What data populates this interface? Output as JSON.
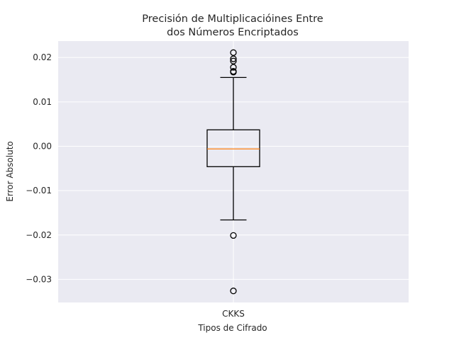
{
  "chart_data": {
    "type": "box",
    "title": [
      "Precisión de Multiplicacióines Entre",
      "dos Números Encriptados"
    ],
    "xlabel": "Tipos de Cifrado",
    "ylabel": "Error Absoluto",
    "categories": [
      "CKKS"
    ],
    "ylim": [
      -0.0352,
      0.0237
    ],
    "yticks": [
      -0.03,
      -0.02,
      -0.01,
      0.0,
      0.01,
      0.02
    ],
    "ytick_labels": [
      "−0.03",
      "−0.02",
      "−0.01",
      "0.00",
      "0.01",
      "0.02"
    ],
    "grid": true,
    "boxes": [
      {
        "name": "CKKS",
        "whisker_low": -0.0166,
        "q1": -0.0046,
        "median": -0.0006,
        "q3": 0.0037,
        "whisker_high": 0.0155,
        "outliers": [
          0.0211,
          0.0197,
          0.0192,
          0.0178,
          0.0169,
          0.0167,
          -0.0201,
          -0.0326
        ]
      }
    ],
    "colors": {
      "background": "#eaeaf2",
      "grid": "#ffffff",
      "box": "#000000",
      "median": "#ff7f0e",
      "text": "#262626"
    }
  }
}
